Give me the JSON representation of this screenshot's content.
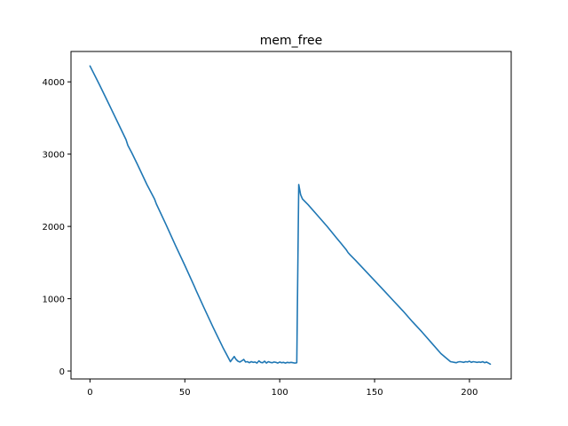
{
  "chart_data": {
    "type": "line",
    "title": "mem_free",
    "xlabel": "",
    "ylabel": "",
    "xlim": [
      -10,
      222
    ],
    "ylim": [
      -110,
      4420
    ],
    "xticks": [
      0,
      50,
      100,
      150,
      200
    ],
    "xtick_labels": [
      "0",
      "50",
      "100",
      "150",
      "200"
    ],
    "yticks": [
      0,
      1000,
      2000,
      3000,
      4000
    ],
    "ytick_labels": [
      "0",
      "1000",
      "2000",
      "3000",
      "4000"
    ],
    "grid": false,
    "series": [
      {
        "name": "",
        "color": "#1f77b4",
        "x": [
          0,
          5,
          10,
          15,
          19,
          20,
          22,
          25,
          30,
          34,
          35,
          40,
          45,
          50,
          55,
          56,
          60,
          65,
          70,
          74,
          76,
          77,
          78,
          79,
          80,
          81,
          82,
          83,
          84,
          85,
          86,
          87,
          88,
          89,
          90,
          91,
          92,
          93,
          94,
          95,
          96,
          97,
          98,
          99,
          100,
          101,
          102,
          103,
          104,
          105,
          106,
          107,
          108,
          109,
          110,
          111,
          112,
          115,
          120,
          125,
          130,
          135,
          136,
          137,
          140,
          145,
          150,
          155,
          160,
          165,
          170,
          175,
          180,
          185,
          190,
          191,
          192,
          193,
          194,
          195,
          196,
          197,
          198,
          199,
          200,
          201,
          202,
          203,
          204,
          205,
          206,
          207,
          208,
          209,
          210,
          211
        ],
        "y": [
          4220,
          3960,
          3690,
          3420,
          3200,
          3120,
          3020,
          2860,
          2580,
          2380,
          2310,
          2030,
          1740,
          1460,
          1170,
          1110,
          880,
          600,
          330,
          130,
          200,
          160,
          135,
          125,
          140,
          160,
          125,
          130,
          115,
          130,
          120,
          125,
          110,
          140,
          120,
          115,
          135,
          110,
          130,
          120,
          115,
          125,
          120,
          110,
          125,
          115,
          120,
          110,
          120,
          115,
          120,
          115,
          110,
          115,
          2580,
          2440,
          2380,
          2300,
          2150,
          2000,
          1840,
          1680,
          1640,
          1610,
          1530,
          1390,
          1250,
          1110,
          970,
          830,
          680,
          540,
          390,
          240,
          130,
          125,
          120,
          115,
          125,
          130,
          125,
          120,
          130,
          125,
          135,
          120,
          130,
          125,
          120,
          125,
          120,
          130,
          115,
          125,
          110,
          95
        ]
      }
    ]
  }
}
